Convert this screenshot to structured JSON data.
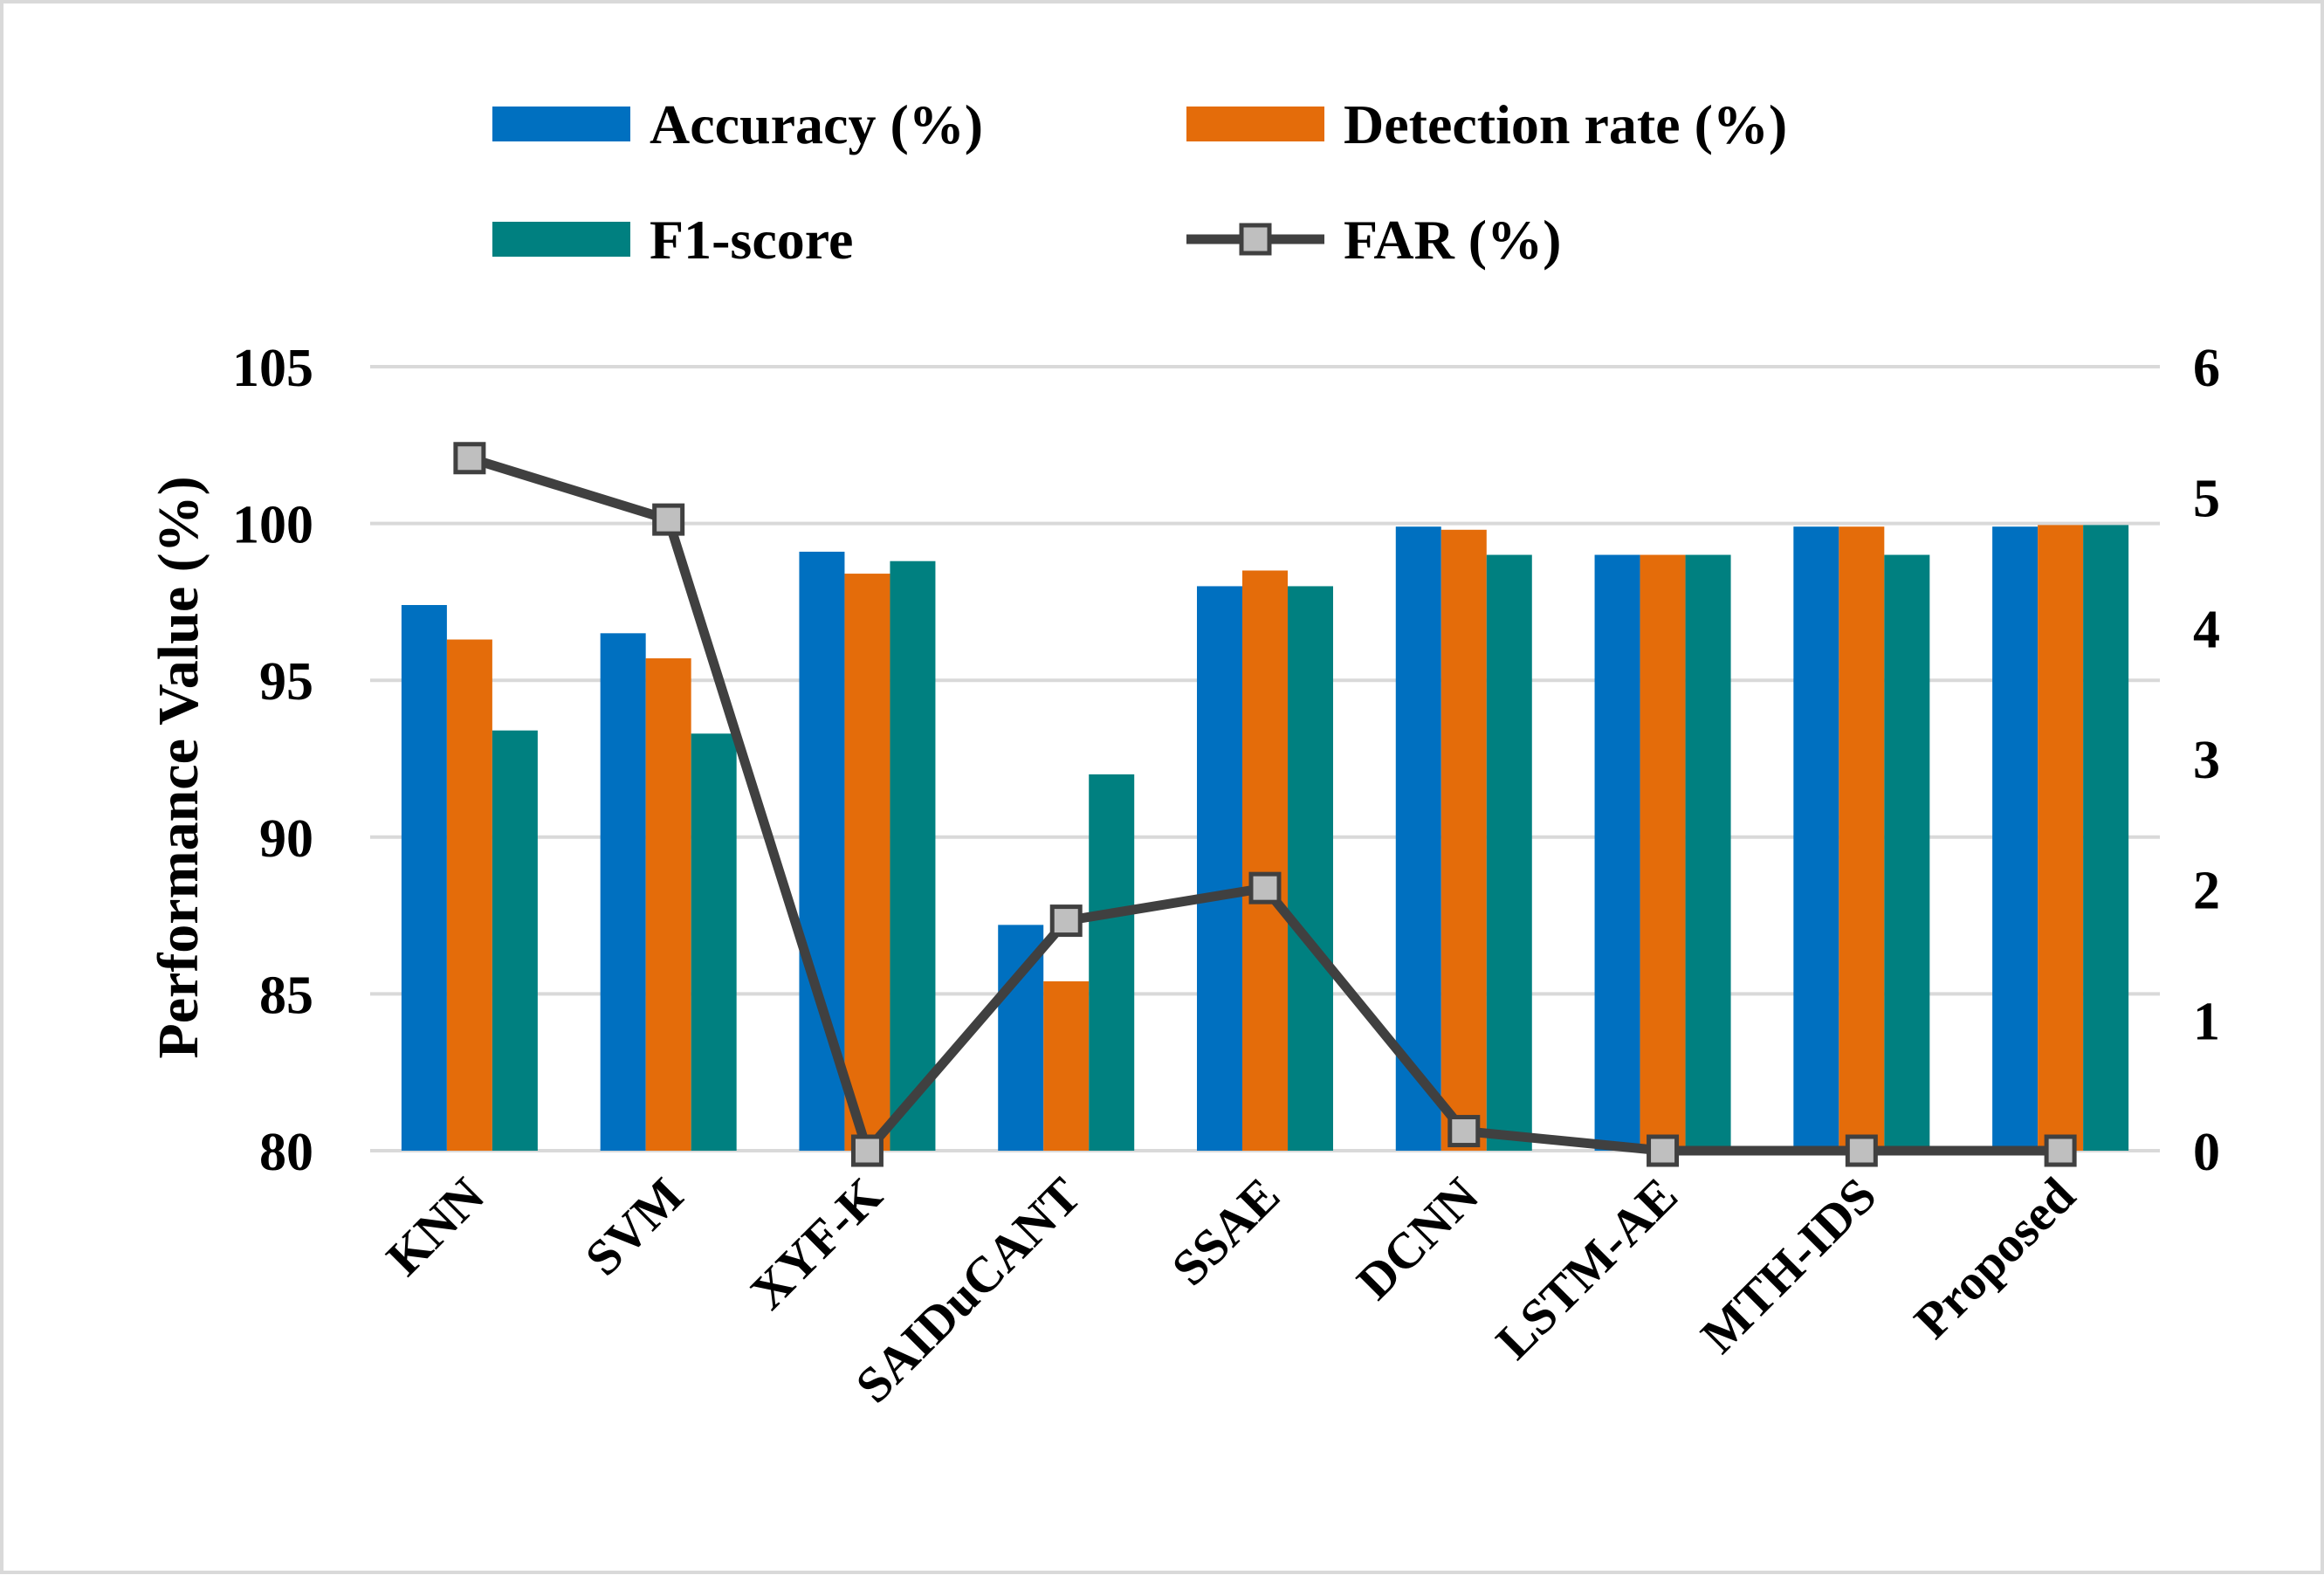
{
  "chart_data": {
    "type": "bar",
    "title": "",
    "categories": [
      "KNN",
      "SVM",
      "XYF-K",
      "SAIDuCANT",
      "SSAE",
      "DCNN",
      "LSTM-AE",
      "MTH-IDS",
      "Proposed"
    ],
    "series": [
      {
        "name": "Accuracy (%)",
        "color": "#0070c0",
        "axis": "left",
        "values": [
          97.4,
          96.5,
          99.1,
          87.2,
          98.0,
          99.9,
          99.0,
          99.9,
          99.9
        ]
      },
      {
        "name": "Detection rate (%)",
        "color": "#e46c0a",
        "axis": "left",
        "values": [
          96.3,
          95.7,
          98.4,
          85.4,
          98.5,
          99.8,
          99.0,
          99.9,
          99.95
        ]
      },
      {
        "name": "F1-score",
        "color": "#008080",
        "axis": "left",
        "values": [
          93.4,
          93.3,
          98.8,
          92.0,
          98.0,
          99.0,
          99.0,
          99.0,
          99.95
        ]
      }
    ],
    "line_series": {
      "name": "FAR (%)",
      "color": "#404040",
      "marker_color": "#bfbfbf",
      "axis": "right",
      "values": [
        5.3,
        4.83,
        0.0,
        1.76,
        2.01,
        0.15,
        0.0,
        0.0,
        0.0
      ]
    },
    "xlabel": "",
    "ylabel": "Performance Value (%)",
    "ylim": [
      80,
      105
    ],
    "yticks": [
      "80",
      "85",
      "90",
      "95",
      "100",
      "105"
    ],
    "y2lim": [
      0,
      6
    ],
    "y2ticks": [
      "0",
      "1",
      "2",
      "3",
      "4",
      "5",
      "6"
    ],
    "grid": true,
    "legend_position": "top"
  }
}
